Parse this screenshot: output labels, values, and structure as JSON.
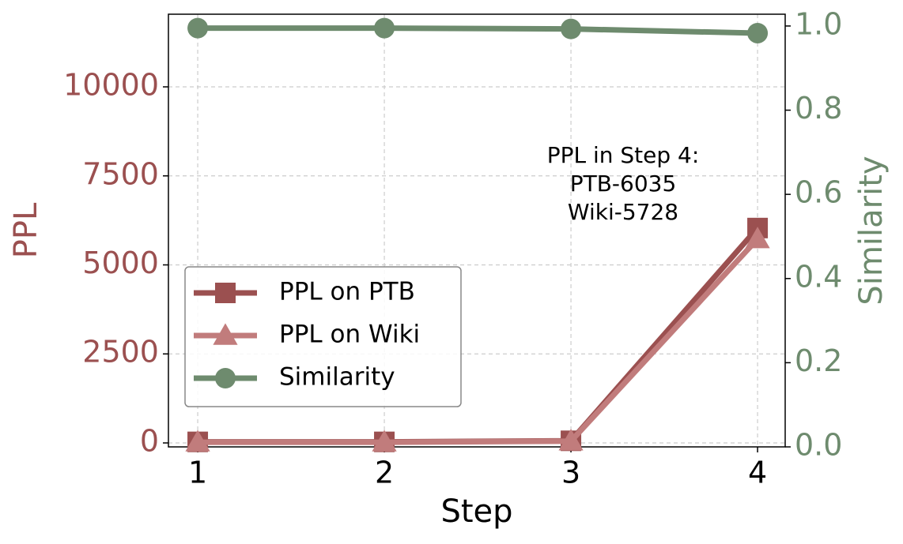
{
  "chart_data": {
    "type": "line",
    "x": [
      1,
      2,
      3,
      4
    ],
    "xlabel": "Step",
    "ylabel": "PPL",
    "y2label": "Similarity",
    "xlim": [
      0.843,
      4.148
    ],
    "ylim": [
      -111,
      12040
    ],
    "y2lim": [
      0,
      1.028
    ],
    "xticks": [
      1,
      2,
      3,
      4
    ],
    "yticks": [
      0,
      2500,
      5000,
      7500,
      10000
    ],
    "y2ticks": [
      {
        "value": 0,
        "label": "0.0"
      },
      0.2,
      0.4,
      0.6,
      0.8,
      {
        "value": 1,
        "label": "1.0"
      }
    ],
    "ylabel_color": "#9b5050",
    "y2label_color": "#6e8b6e",
    "grid": true,
    "legend": "center left",
    "series": [
      {
        "name": "PPL on PTB",
        "color": "#9b5050",
        "marker": "square",
        "values": [
          30,
          30,
          60,
          6035
        ]
      },
      {
        "name": "PPL on Wiki",
        "color": "#c17c7c",
        "marker": "triangle",
        "values": [
          20,
          20,
          50,
          5728
        ]
      },
      {
        "name": "Similarity",
        "color": "#6e8b6e",
        "marker": "circle",
        "axis": "y2",
        "values": [
          0.995,
          0.995,
          0.993,
          0.983
        ]
      }
    ],
    "annotation": [
      "PPL in Step 4:",
      "PTB-6035",
      "Wiki-5728"
    ]
  }
}
